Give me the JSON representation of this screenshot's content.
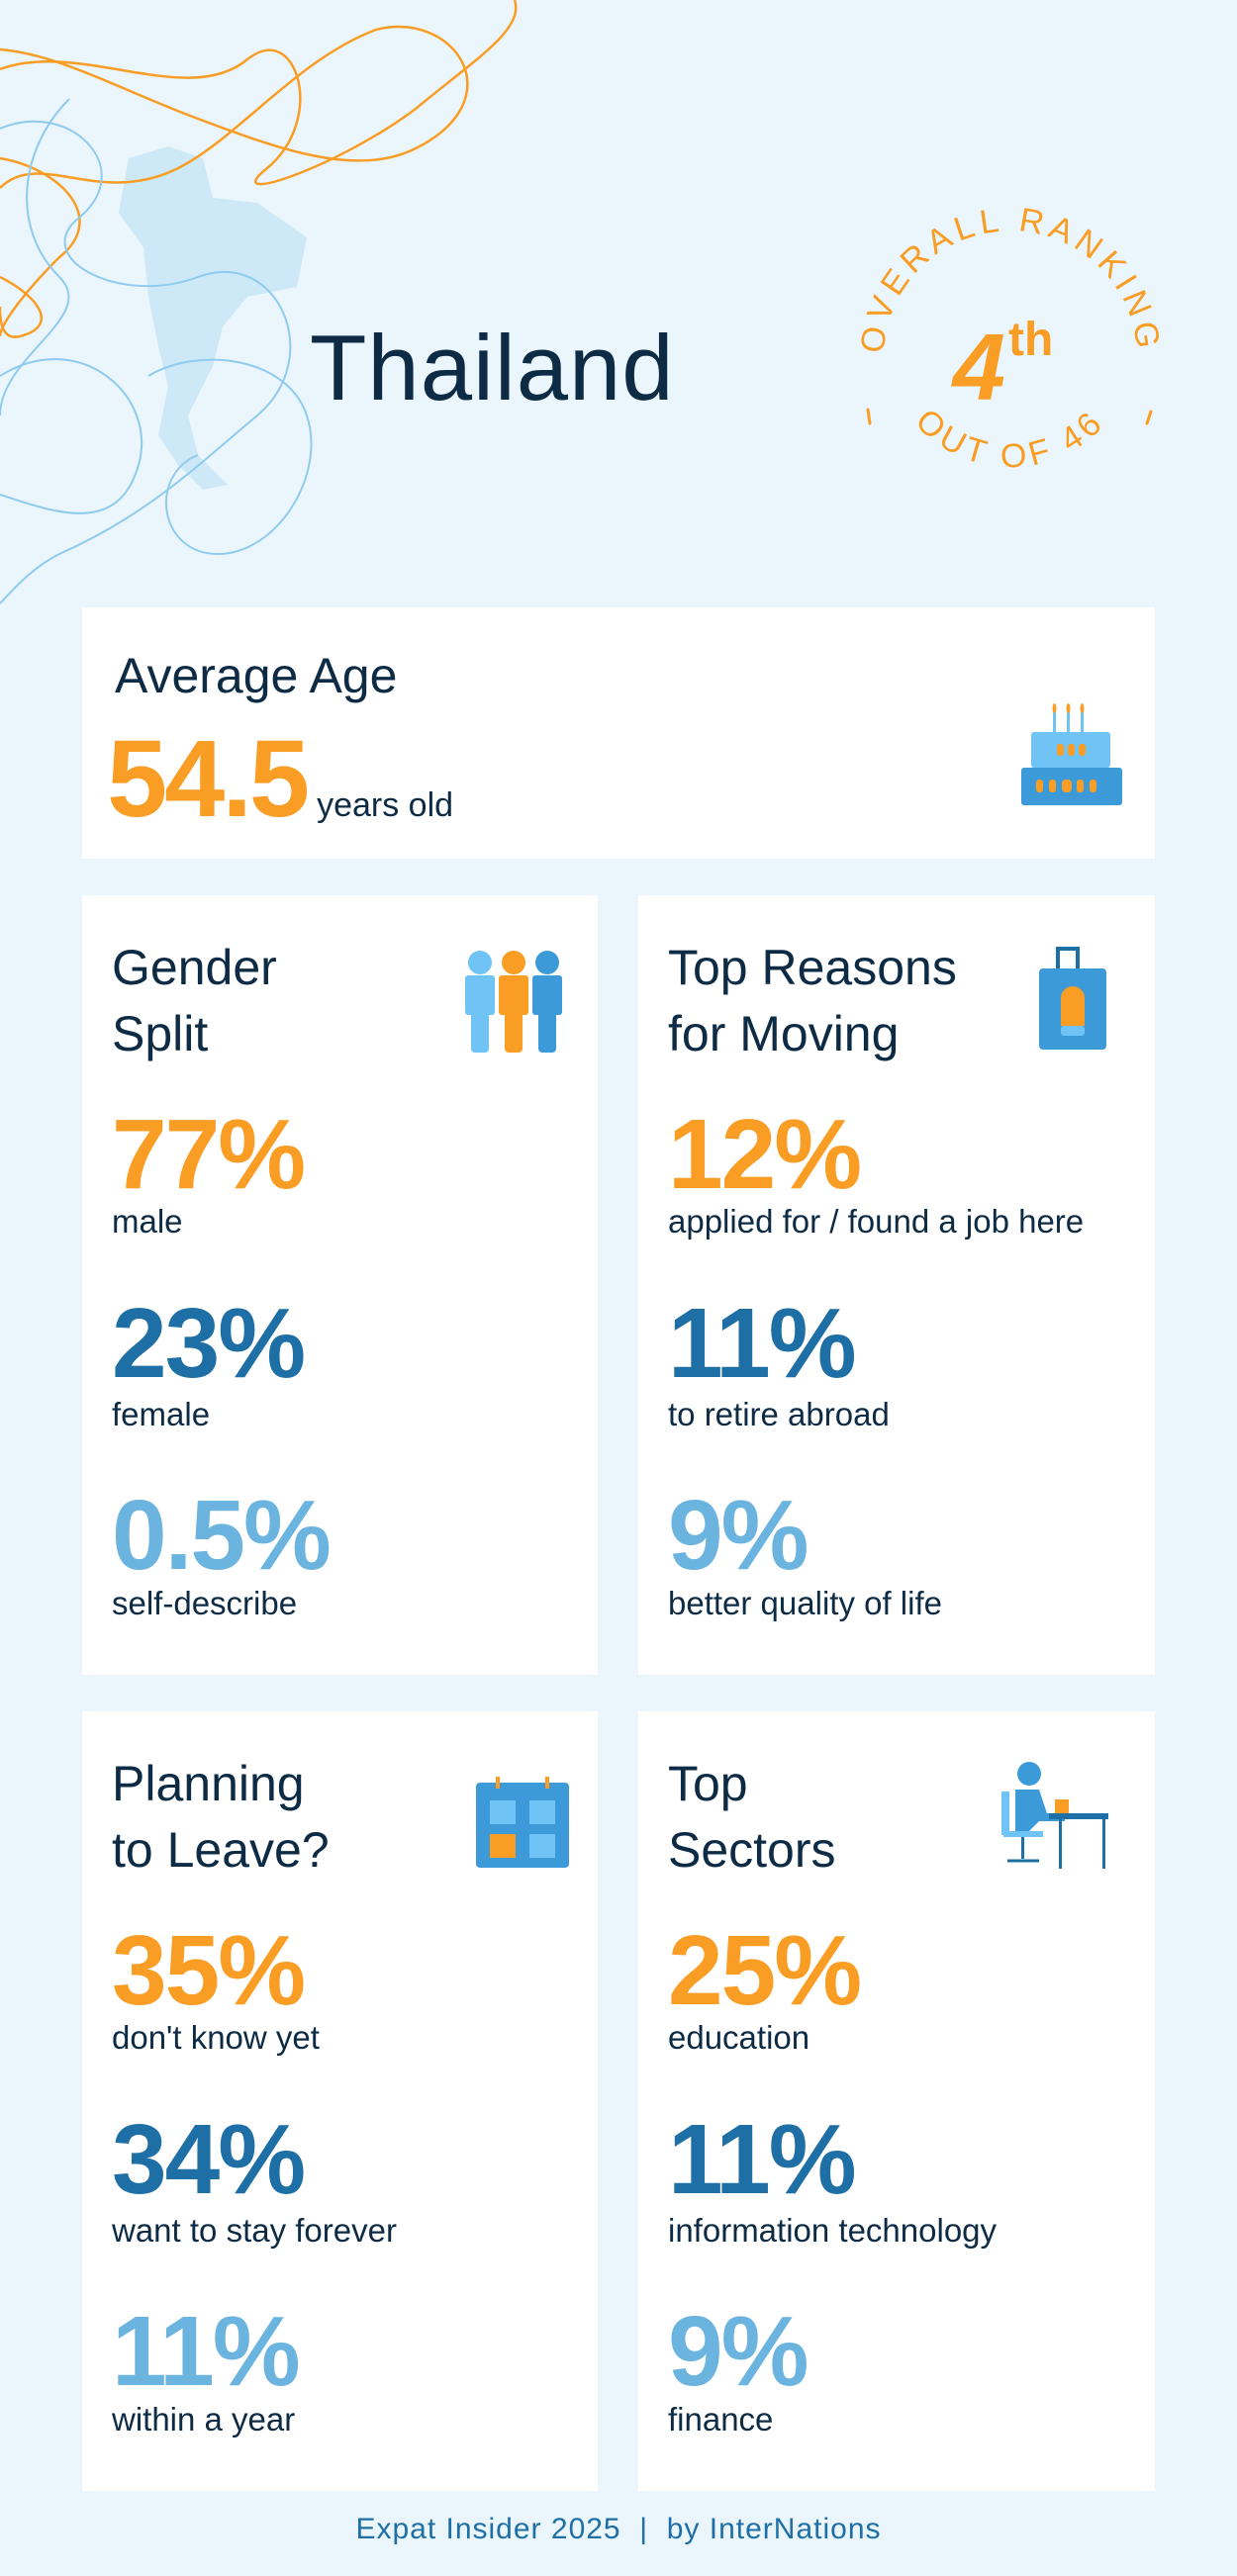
{
  "header": {
    "country": "Thailand",
    "ranking": {
      "top_text": "OVERALL RANKING",
      "bottom_text": "OUT OF 46",
      "rank": "4",
      "suffix": "th"
    }
  },
  "average_age": {
    "title": "Average Age",
    "value": "54.5",
    "unit": "years old",
    "icon": "birthday-cake-icon"
  },
  "gender_split": {
    "title_line1": "Gender",
    "title_line2": "Split",
    "icon": "people-icon",
    "stats": [
      {
        "value": "77%",
        "label": "male"
      },
      {
        "value": "23%",
        "label": "female"
      },
      {
        "value": "0.5%",
        "label": "self-describe"
      }
    ]
  },
  "top_reasons": {
    "title_line1": "Top Reasons",
    "title_line2": "for Moving",
    "icon": "suitcase-icon",
    "stats": [
      {
        "value": "12%",
        "label": "applied for / found a job here"
      },
      {
        "value": "11%",
        "label": "to retire abroad"
      },
      {
        "value": "9%",
        "label": "better quality of life"
      }
    ]
  },
  "planning_to_leave": {
    "title_line1": "Planning",
    "title_line2": "to Leave?",
    "icon": "calendar-icon",
    "stats": [
      {
        "value": "35%",
        "label": "don't know yet"
      },
      {
        "value": "34%",
        "label": "want to stay forever"
      },
      {
        "value": "11%",
        "label": "within a year"
      }
    ]
  },
  "top_sectors": {
    "title_line1": "Top",
    "title_line2": "Sectors",
    "icon": "person-at-desk-icon",
    "stats": [
      {
        "value": "25%",
        "label": "education"
      },
      {
        "value": "11%",
        "label": "information technology"
      },
      {
        "value": "9%",
        "label": "finance"
      }
    ]
  },
  "footer": {
    "text": "Expat Insider 2025  |  by InterNations"
  },
  "colors": {
    "background": "#eaf5fc",
    "orange": "#f99d25",
    "dark_blue": "#1d6fa5",
    "light_blue": "#6bb4e0",
    "navy": "#0d2b45"
  }
}
